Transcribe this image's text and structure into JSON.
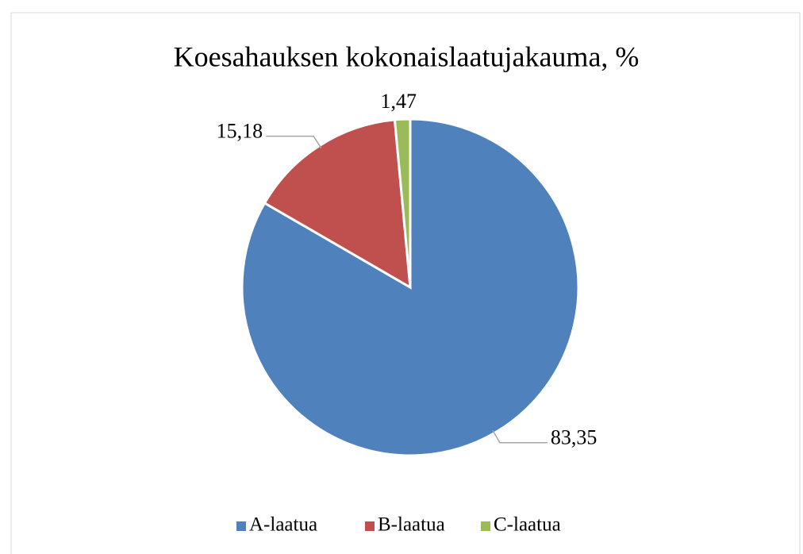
{
  "chart_data": {
    "type": "pie",
    "title": "Koesahauksen kokonaislaatujakauma, %",
    "categories": [
      "A-laatua",
      "B-laatua",
      "C-laatua"
    ],
    "values": [
      83.35,
      15.18,
      1.47
    ],
    "value_labels": [
      "83,35",
      "15,18",
      "1,47"
    ],
    "colors": [
      "#4f81bd",
      "#c0504d",
      "#9bbb59"
    ],
    "legend": "bottom"
  }
}
